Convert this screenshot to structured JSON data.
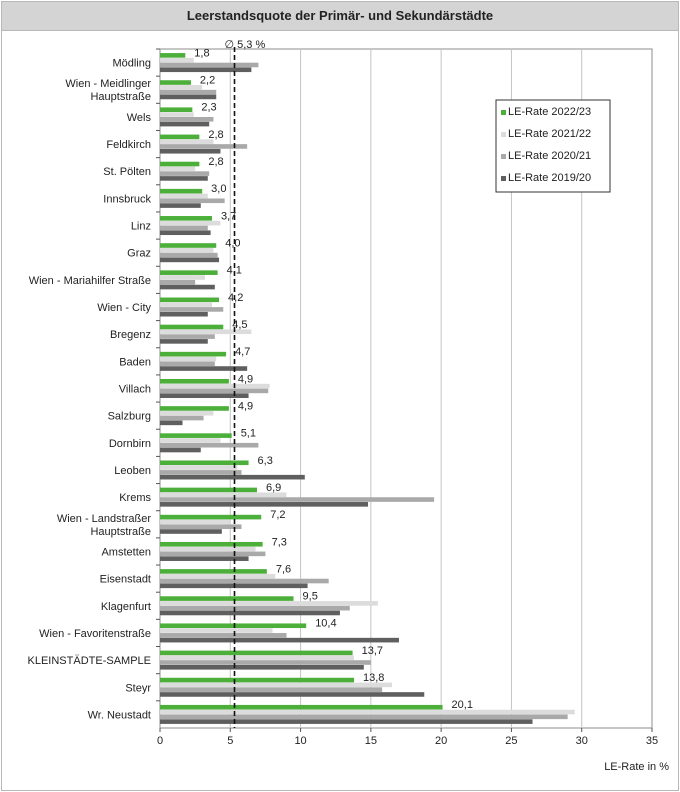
{
  "chart_data": {
    "type": "bar",
    "orientation": "horizontal",
    "title": "Leerstandsquote der Primär- und Sekundärstädte",
    "xlabel": "LE-Rate in %",
    "xlim": [
      0,
      35
    ],
    "xticks": [
      0,
      5,
      10,
      15,
      20,
      25,
      30,
      35
    ],
    "grid": true,
    "legend_position": "top-right",
    "reference_line": {
      "value": 5.3,
      "label": "∅ 5,3 %"
    },
    "categories": [
      [
        "Mödling"
      ],
      [
        "Wien - Meidlinger",
        "Hauptstraße"
      ],
      [
        "Wels"
      ],
      [
        "Feldkirch"
      ],
      [
        "St. Pölten"
      ],
      [
        "Innsbruck"
      ],
      [
        "Linz"
      ],
      [
        "Graz"
      ],
      [
        "Wien - Mariahilfer Straße"
      ],
      [
        "Wien - City"
      ],
      [
        "Bregenz"
      ],
      [
        "Baden"
      ],
      [
        "Villach"
      ],
      [
        "Salzburg"
      ],
      [
        "Dornbirn"
      ],
      [
        "Leoben"
      ],
      [
        "Krems"
      ],
      [
        "Wien - Landstraßer",
        "Hauptstraße"
      ],
      [
        "Amstetten"
      ],
      [
        "Eisenstadt"
      ],
      [
        "Klagenfurt"
      ],
      [
        "Wien - Favoritenstraße"
      ],
      [
        "KLEINSTÄDTE-SAMPLE"
      ],
      [
        "Steyr"
      ],
      [
        "Wr. Neustadt"
      ]
    ],
    "data_labels": [
      "1,8",
      "2,2",
      "2,3",
      "2,8",
      "2,8",
      "3,0",
      "3,7",
      "4,0",
      "4,1",
      "4,2",
      "4,5",
      "4,7",
      "4,9",
      "4,9",
      "5,1",
      "6,3",
      "6,9",
      "7,2",
      "7,3",
      "7,6",
      "9,5",
      "10,4",
      "13,7",
      "13,8",
      "20,1"
    ],
    "series": [
      {
        "name": "LE-Rate 2022/23",
        "color": "#4caf3a",
        "values": [
          1.8,
          2.2,
          2.3,
          2.8,
          2.8,
          3.0,
          3.7,
          4.0,
          4.1,
          4.2,
          4.5,
          4.7,
          4.9,
          4.9,
          5.1,
          6.3,
          6.9,
          7.2,
          7.3,
          7.6,
          9.5,
          10.4,
          13.7,
          13.8,
          20.1
        ]
      },
      {
        "name": "LE-Rate 2021/22",
        "color": "#dcdcdc",
        "values": [
          2.4,
          3.0,
          2.4,
          3.8,
          2.5,
          3.4,
          4.3,
          3.8,
          3.2,
          3.7,
          6.5,
          4.0,
          7.8,
          3.8,
          4.3,
          5.5,
          9.0,
          5.0,
          6.8,
          8.2,
          15.5,
          8.0,
          13.8,
          16.5,
          29.5
        ]
      },
      {
        "name": "LE-Rate 2020/21",
        "color": "#a9a9a9",
        "values": [
          7.0,
          4.0,
          3.8,
          6.2,
          3.5,
          4.6,
          3.4,
          4.1,
          2.5,
          4.5,
          3.9,
          3.9,
          7.7,
          3.1,
          7.0,
          5.8,
          19.5,
          5.8,
          7.5,
          12.0,
          13.5,
          9.0,
          15.0,
          15.8,
          29.0
        ]
      },
      {
        "name": "LE-Rate 2019/20",
        "color": "#5f5f5f",
        "values": [
          6.5,
          4.0,
          3.5,
          4.3,
          3.4,
          2.9,
          3.6,
          4.2,
          3.9,
          3.4,
          3.4,
          6.2,
          6.3,
          1.6,
          2.9,
          10.3,
          14.8,
          4.4,
          6.3,
          10.5,
          12.8,
          17.0,
          14.5,
          18.8,
          26.5
        ]
      }
    ]
  }
}
